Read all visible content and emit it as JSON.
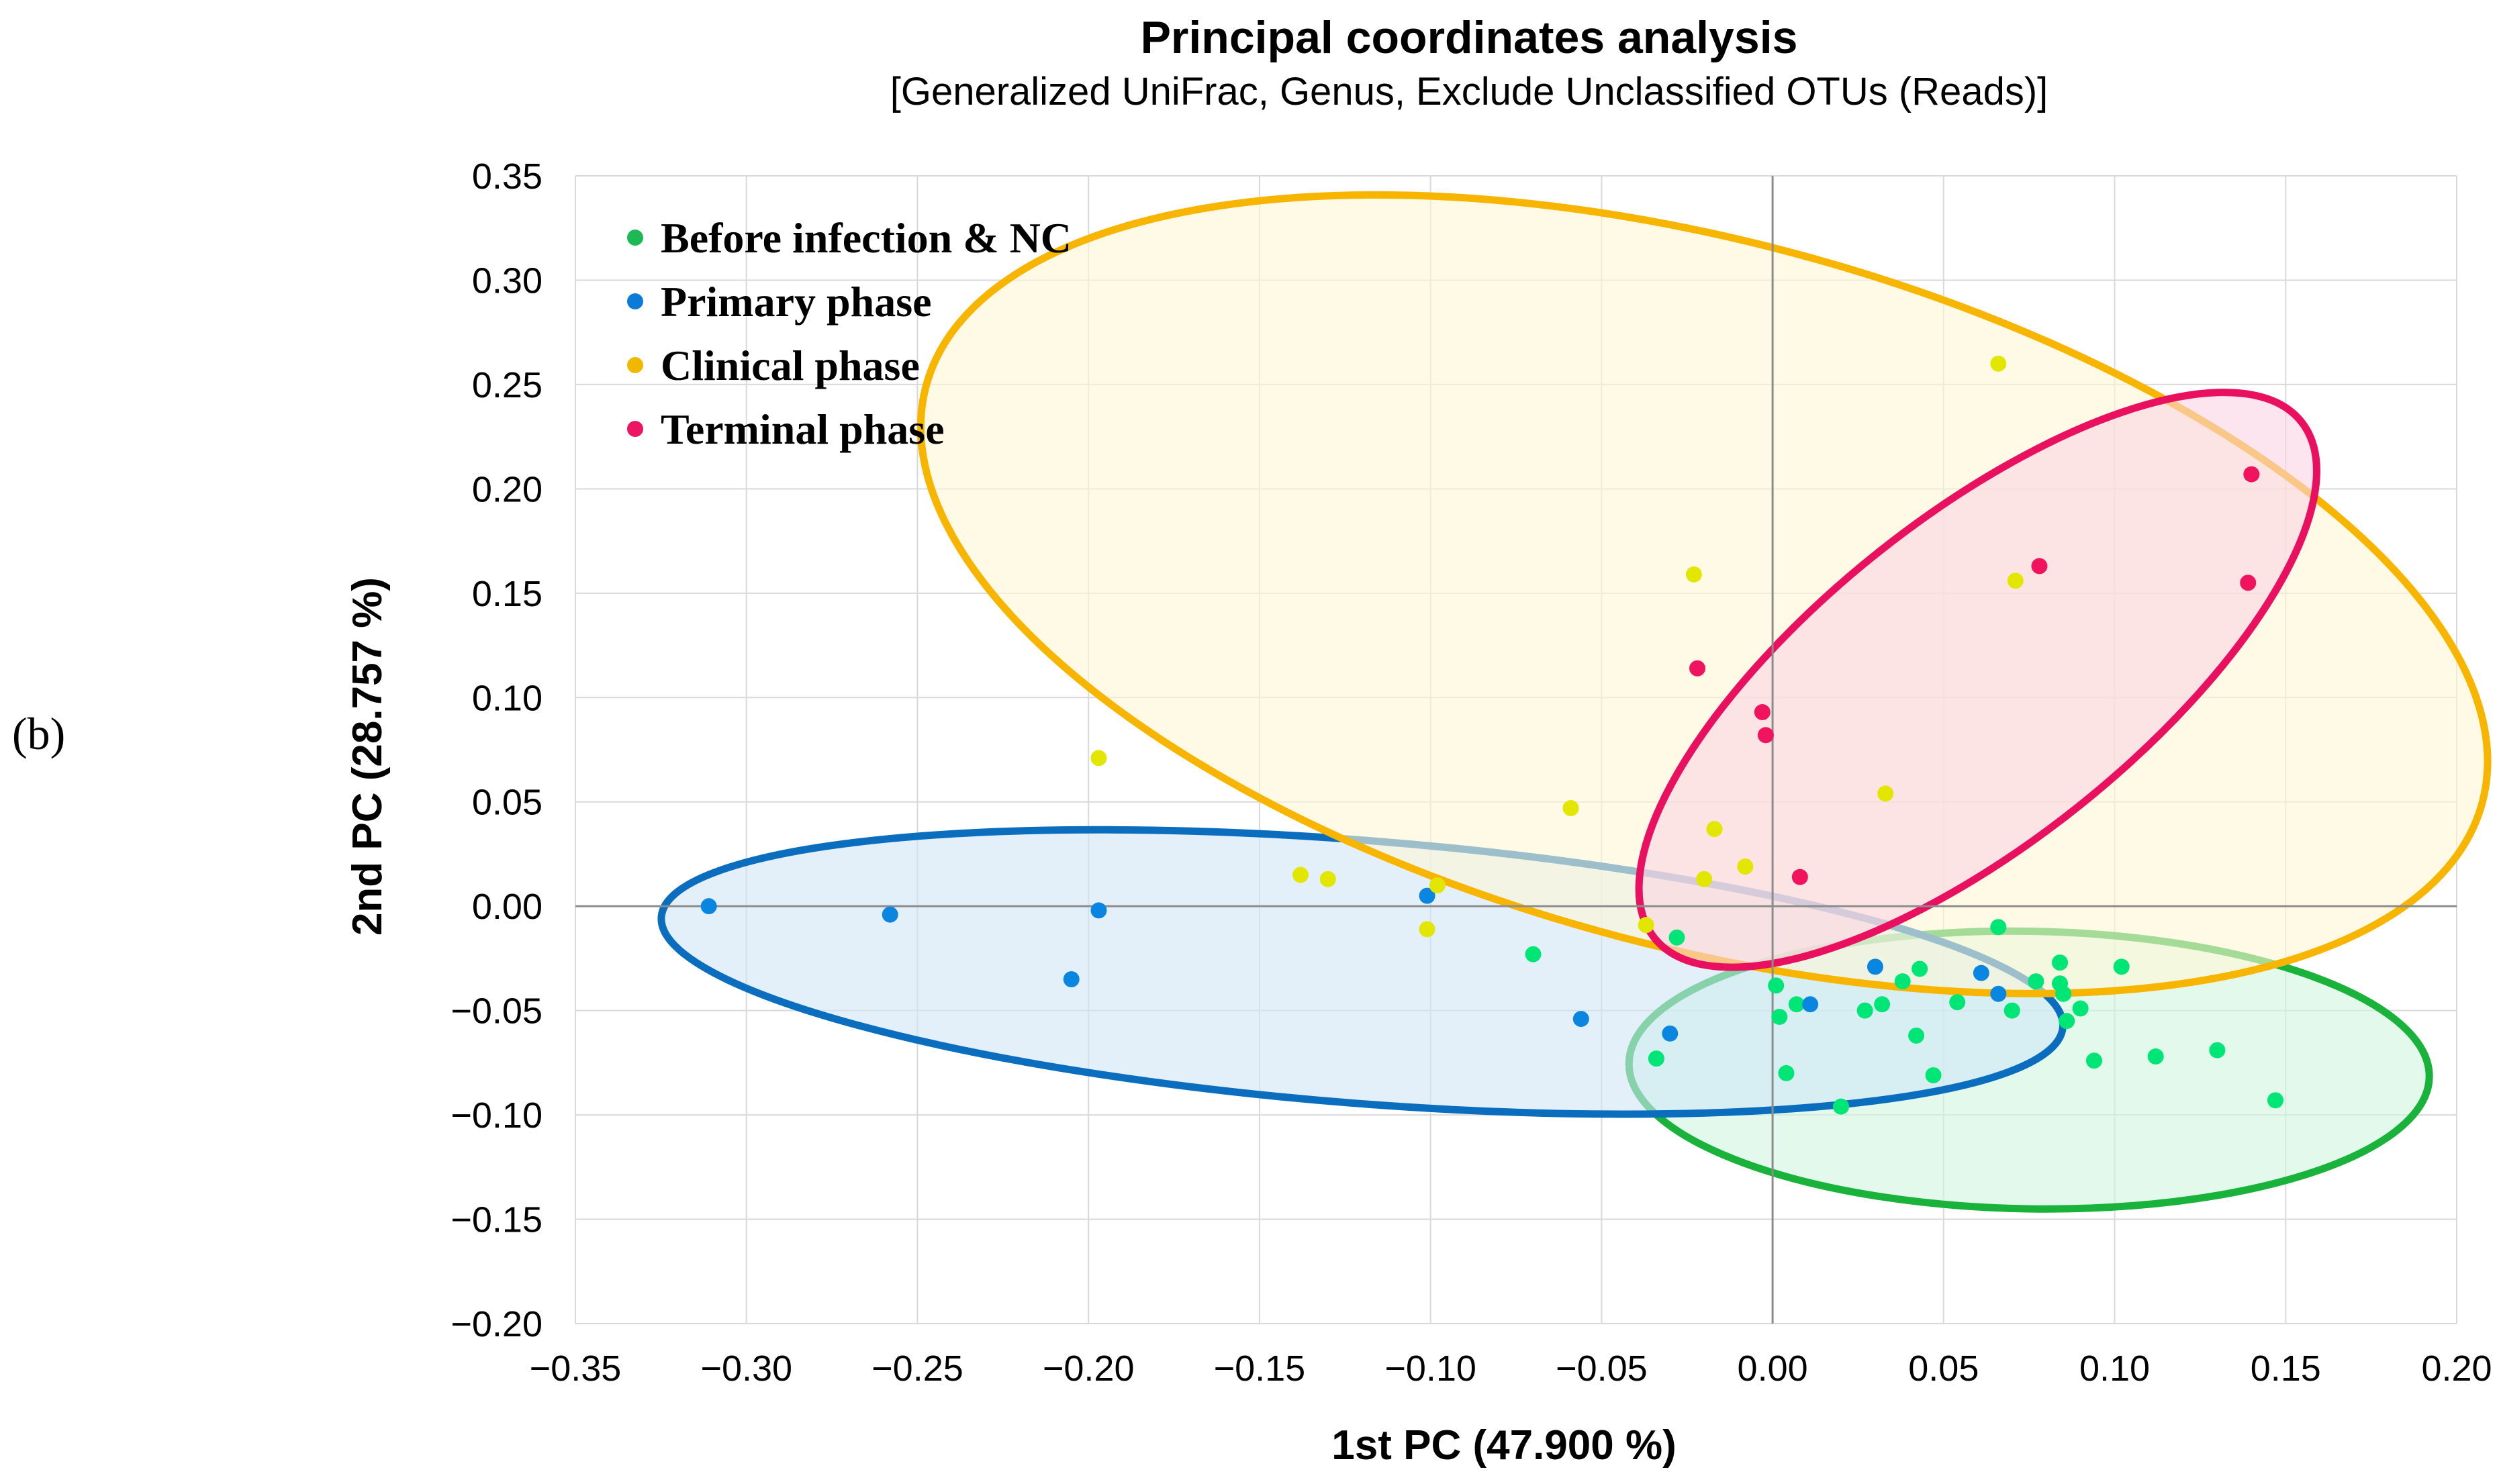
{
  "panel_label": "(b)",
  "chart_data": {
    "type": "scatter",
    "title": "Principal coordinates analysis",
    "subtitle": "[Generalized UniFrac, Genus, Exclude Unclassified OTUs (Reads)]",
    "xlabel": "1st PC (47.900 %)",
    "ylabel": "2nd PC (28.757 %)",
    "xlim": [
      -0.35,
      0.2
    ],
    "ylim": [
      -0.2,
      0.35
    ],
    "grid": true,
    "xticks": [
      -0.35,
      -0.3,
      -0.25,
      -0.2,
      -0.15,
      -0.1,
      -0.05,
      0.0,
      0.05,
      0.1,
      0.15,
      0.2
    ],
    "yticks": [
      -0.2,
      -0.15,
      -0.1,
      -0.05,
      0.0,
      0.05,
      0.1,
      0.15,
      0.2,
      0.25,
      0.3,
      0.35
    ],
    "xtick_labels": [
      "−0.35",
      "−0.30",
      "−0.25",
      "−0.20",
      "−0.15",
      "−0.10",
      "−0.05",
      "0.00",
      "0.05",
      "0.10",
      "0.15",
      "0.20"
    ],
    "ytick_labels": [
      "−0.20",
      "−0.15",
      "−0.10",
      "−0.05",
      "0.00",
      "0.05",
      "0.10",
      "0.15",
      "0.20",
      "0.25",
      "0.30",
      "0.35"
    ],
    "legend_position": "top-left",
    "series": [
      {
        "name": "Before infection & NC",
        "color": "#00E676",
        "legend_color": "#1DB954",
        "ellipse": {
          "cx": 0.075,
          "cy": -0.0785,
          "rx": 0.117,
          "ry": 0.0665,
          "angle_deg": -1,
          "stroke": "#19B23B",
          "fill": "#CFF5DD"
        },
        "points": [
          [
            0.001,
            -0.038
          ],
          [
            0.002,
            -0.053
          ],
          [
            0.004,
            -0.08
          ],
          [
            0.007,
            -0.047
          ],
          [
            0.02,
            -0.096
          ],
          [
            0.027,
            -0.05
          ],
          [
            0.032,
            -0.047
          ],
          [
            0.038,
            -0.036
          ],
          [
            0.043,
            -0.03
          ],
          [
            0.042,
            -0.062
          ],
          [
            0.047,
            -0.081
          ],
          [
            0.054,
            -0.046
          ],
          [
            0.066,
            -0.01
          ],
          [
            0.07,
            -0.05
          ],
          [
            0.077,
            -0.036
          ],
          [
            0.084,
            -0.027
          ],
          [
            0.084,
            -0.037
          ],
          [
            0.085,
            -0.042
          ],
          [
            0.086,
            -0.055
          ],
          [
            0.09,
            -0.049
          ],
          [
            0.094,
            -0.074
          ],
          [
            0.102,
            -0.029
          ],
          [
            0.112,
            -0.072
          ],
          [
            0.13,
            -0.069
          ],
          [
            0.147,
            -0.093
          ],
          [
            -0.034,
            -0.073
          ],
          [
            -0.028,
            -0.015
          ],
          [
            -0.07,
            -0.023
          ]
        ]
      },
      {
        "name": "Primary phase",
        "color": "#0A86E0",
        "legend_color": "#0A7BD6",
        "ellipse": {
          "cx": -0.12,
          "cy": -0.0315,
          "rx": 0.2055,
          "ry": 0.063,
          "angle_deg": -4.5,
          "stroke": "#0B6DBD",
          "fill": "#D0E6F7"
        },
        "points": [
          [
            -0.311,
            0.0
          ],
          [
            -0.258,
            -0.004
          ],
          [
            -0.205,
            -0.035
          ],
          [
            -0.197,
            -0.002
          ],
          [
            -0.101,
            0.005
          ],
          [
            -0.056,
            -0.054
          ],
          [
            -0.03,
            -0.061
          ],
          [
            0.011,
            -0.047
          ],
          [
            0.03,
            -0.029
          ],
          [
            0.066,
            -0.042
          ],
          [
            0.061,
            -0.032
          ]
        ]
      },
      {
        "name": "Clinical phase",
        "color": "#E3E600",
        "legend_color": "#F2B800",
        "ellipse": {
          "cx": -0.02,
          "cy": 0.1495,
          "rx": 0.2355,
          "ry": 0.169,
          "angle_deg": -15,
          "stroke": "#F7B500",
          "fill": "#FFF6D6"
        },
        "points": [
          [
            -0.197,
            0.071
          ],
          [
            -0.138,
            0.015
          ],
          [
            -0.13,
            0.013
          ],
          [
            -0.101,
            -0.011
          ],
          [
            -0.098,
            0.01
          ],
          [
            -0.059,
            0.047
          ],
          [
            -0.037,
            -0.009
          ],
          [
            -0.023,
            0.159
          ],
          [
            -0.02,
            0.013
          ],
          [
            -0.017,
            0.037
          ],
          [
            -0.008,
            0.019
          ],
          [
            0.033,
            0.054
          ],
          [
            0.066,
            0.26
          ],
          [
            0.071,
            0.156
          ]
        ]
      },
      {
        "name": "Terminal phase",
        "color": "#F0145F",
        "legend_color": "#EC1563",
        "ellipse": {
          "cx": 0.06,
          "cy": 0.1085,
          "rx": 0.121,
          "ry": 0.0775,
          "angle_deg": 38.6,
          "stroke": "#EA1060",
          "fill": "#FAD3E3"
        },
        "points": [
          [
            -0.022,
            0.114
          ],
          [
            -0.003,
            0.093
          ],
          [
            -0.002,
            0.082
          ],
          [
            0.008,
            0.014
          ],
          [
            0.078,
            0.163
          ],
          [
            0.139,
            0.155
          ],
          [
            0.14,
            0.207
          ]
        ]
      }
    ]
  }
}
